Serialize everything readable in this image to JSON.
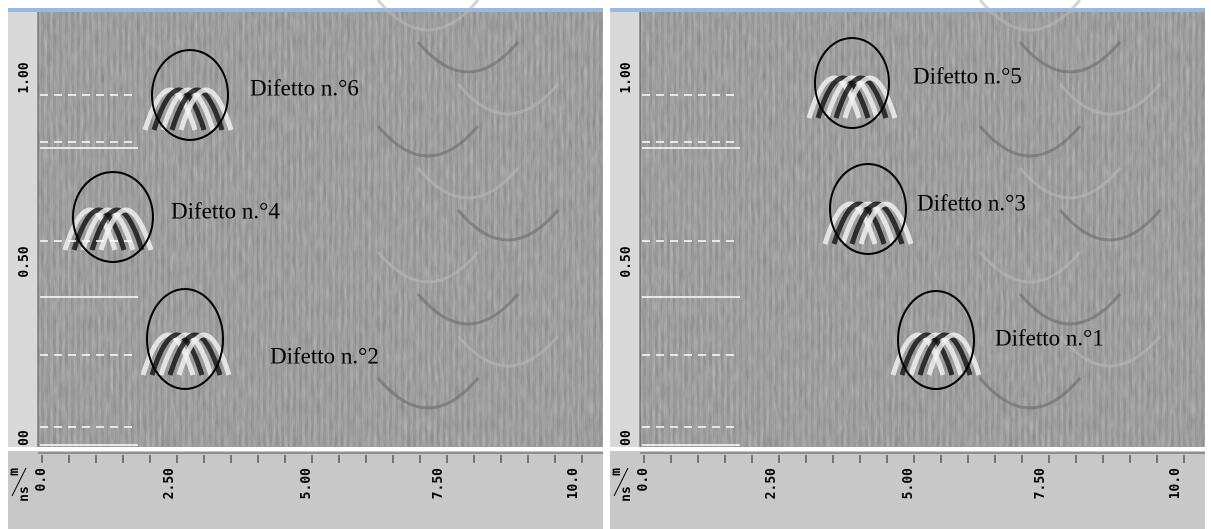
{
  "panels": [
    {
      "y_axis_labels": [
        "1.00",
        "0.50",
        "00"
      ],
      "x_axis_labels": [
        "0.0",
        "2.50",
        "5.00",
        "7.50",
        "10.0"
      ],
      "unit_top": "m",
      "unit_bottom": "ns",
      "annotations": [
        "Difetto n.°6",
        "Difetto n.°4",
        "Difetto n.°2"
      ]
    },
    {
      "y_axis_labels": [
        "1.00",
        "0.50",
        "00"
      ],
      "x_axis_labels": [
        "0.0",
        "2.50",
        "5.00",
        "7.50",
        "10.0"
      ],
      "unit_top": "m",
      "unit_bottom": "ns",
      "annotations": [
        "Difetto n.°5",
        "Difetto n.°3",
        "Difetto n.°1"
      ]
    }
  ]
}
